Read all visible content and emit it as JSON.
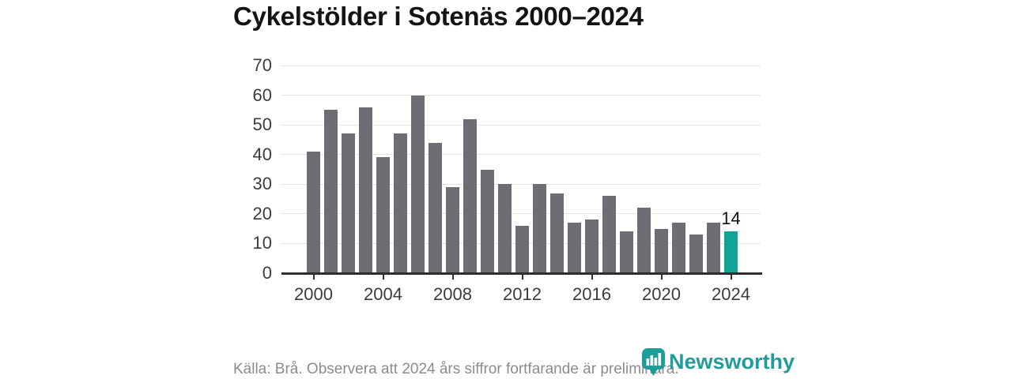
{
  "title": "Cykelstölder i Sotenäs 2000–2024",
  "chart_data": {
    "type": "bar",
    "x": [
      2000,
      2001,
      2002,
      2003,
      2004,
      2005,
      2006,
      2007,
      2008,
      2009,
      2010,
      2011,
      2012,
      2013,
      2014,
      2015,
      2016,
      2017,
      2018,
      2019,
      2020,
      2021,
      2022,
      2023,
      2024
    ],
    "values": [
      41,
      55,
      47,
      56,
      39,
      47,
      60,
      44,
      29,
      52,
      35,
      30,
      16,
      30,
      27,
      17,
      18,
      26,
      14,
      22,
      15,
      17,
      13,
      17,
      14
    ],
    "title": "Cykelstölder i Sotenäs 2000–2024",
    "xlabel": "",
    "ylabel": "",
    "ylim": [
      0,
      70
    ],
    "yticks": [
      0,
      10,
      20,
      30,
      40,
      50,
      60,
      70
    ],
    "xticks": [
      2000,
      2004,
      2008,
      2012,
      2016,
      2020,
      2024
    ],
    "grid": true,
    "legend": false,
    "highlight_year": 2024,
    "highlight_label": "14",
    "bar_color": "#6e6d73",
    "highlight_color": "#10a396",
    "gridline_color": "#e4e4e4",
    "axis_color": "#2e2e2e",
    "tick_label_color": "#3c3c3c"
  },
  "footer": {
    "source_note": "Källa: Brå. Observera att 2024 års siffror fortfarande är preliminära."
  },
  "branding": {
    "logo_text": "Newsworthy",
    "color": "#1e9d9a"
  }
}
